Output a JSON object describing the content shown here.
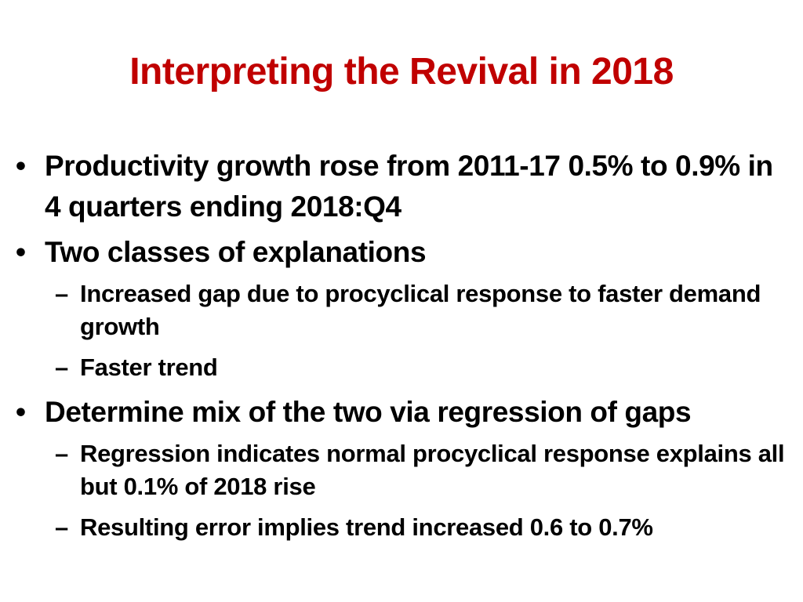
{
  "slide": {
    "title": "Interpreting the Revival in 2018",
    "title_color": "#c00000",
    "bullet_marker": "•",
    "sub_marker": "–",
    "bullets": [
      {
        "text": "Productivity growth rose from 2011-17 0.5% to 0.9% in 4 quarters ending 2018:Q4",
        "sub": []
      },
      {
        "text": "Two classes of explanations",
        "sub": [
          "Increased gap due to procyclical response to faster demand growth",
          "Faster trend"
        ]
      },
      {
        "text": "Determine mix of the two via regression of gaps",
        "sub": [
          "Regression indicates normal procyclical response explains all but 0.1% of 2018 rise",
          "Resulting error implies trend increased 0.6 to 0.7%"
        ]
      }
    ]
  }
}
